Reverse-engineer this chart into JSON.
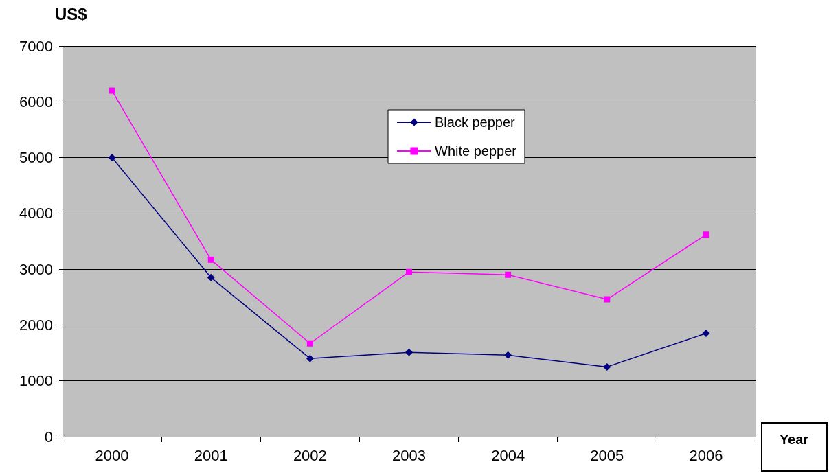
{
  "chart_data": {
    "type": "line",
    "ylabel": "US$",
    "xlabel": "Year",
    "categories": [
      "2000",
      "2001",
      "2002",
      "2003",
      "2004",
      "2005",
      "2006"
    ],
    "series": [
      {
        "name": "Black pepper",
        "color": "#000080",
        "marker": "diamond",
        "values": [
          5000,
          2850,
          1400,
          1510,
          1460,
          1250,
          1850
        ]
      },
      {
        "name": "White pepper",
        "color": "#ff00ff",
        "marker": "square",
        "values": [
          6200,
          3170,
          1670,
          2950,
          2900,
          2460,
          3620
        ]
      }
    ],
    "ylim": [
      0,
      7000
    ],
    "yticks": [
      0,
      1000,
      2000,
      3000,
      4000,
      5000,
      6000,
      7000
    ],
    "grid": "y",
    "legend": "top",
    "line_style": "solid"
  }
}
